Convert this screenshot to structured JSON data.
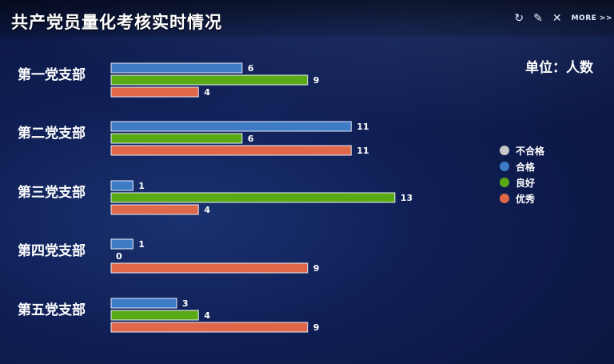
{
  "header": {
    "title": "共产党员量化考核实时情况",
    "more_label": "MORE >>"
  },
  "unit_label": "单位：人数",
  "colors": {
    "不合格": "#c8c8c8",
    "合格": "#3d7bc4",
    "良好": "#5aaa16",
    "优秀": "#e0684a"
  },
  "legend": [
    "不合格",
    "合格",
    "良好",
    "优秀"
  ],
  "chart_data": {
    "type": "bar",
    "orientation": "horizontal",
    "title": "共产党员量化考核实时情况",
    "unit": "单位：人数",
    "categories": [
      "第一党支部",
      "第二党支部",
      "第三党支部",
      "第四党支部",
      "第五党支部"
    ],
    "series": [
      {
        "name": "合格",
        "values": [
          6,
          11,
          1,
          1,
          3
        ]
      },
      {
        "name": "良好",
        "values": [
          9,
          6,
          13,
          0,
          4
        ]
      },
      {
        "name": "优秀",
        "values": [
          4,
          11,
          4,
          9,
          9
        ]
      }
    ],
    "legend_entries": [
      "不合格",
      "合格",
      "良好",
      "优秀"
    ],
    "xlim": [
      0,
      13
    ],
    "grid": false,
    "legend_position": "right"
  }
}
